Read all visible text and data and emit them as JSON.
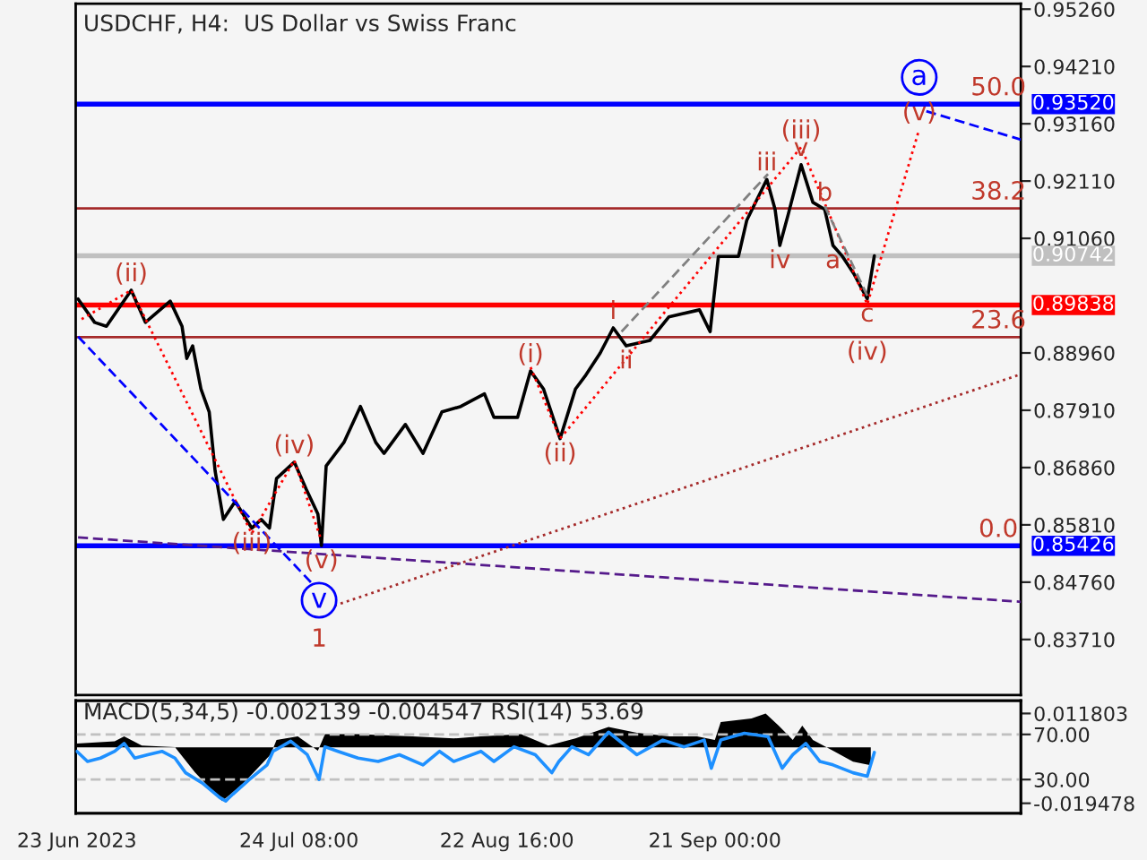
{
  "chart_data": [
    {
      "type": "line",
      "title": "USDCHF, H4:  US Dollar vs Swiss Franc",
      "xlim": [
        "2023-06-22T20:00",
        "2023-11-03T04:00"
      ],
      "tick_labels": "y",
      "ylim": [
        0.8269,
        0.9536
      ],
      "yticks": [
        {
          "value": 0.9526,
          "label": "0.95260"
        },
        {
          "value": 0.9421,
          "label": "0.94210"
        },
        {
          "value": 0.9316,
          "label": "0.93160"
        },
        {
          "value": 0.9211,
          "label": "0.92110"
        },
        {
          "value": 0.9106,
          "label": "0.91060"
        },
        {
          "value": 0.8896,
          "label": "0.88960"
        },
        {
          "value": 0.8791,
          "label": "0.87910"
        },
        {
          "value": 0.8686,
          "label": "0.86860"
        },
        {
          "value": 0.8581,
          "label": "0.85810"
        },
        {
          "value": 0.8476,
          "label": "0.84760"
        },
        {
          "value": 0.8371,
          "label": "0.83710"
        }
      ],
      "ref_lines": [
        {
          "axis": "y",
          "value": 0.9161,
          "color": "#a52a2a"
        },
        {
          "axis": "y",
          "value": 0.8925,
          "color": "#a52a2a"
        },
        {
          "axis": "y",
          "value": 0.9352,
          "label": "0.93520",
          "color": "#0000ff"
        },
        {
          "axis": "y",
          "value": 0.89838,
          "label": "0.89838",
          "color": "#ff0000"
        },
        {
          "axis": "y",
          "value": 0.90742,
          "label": "0.90742",
          "color": "#c0c0c0"
        },
        {
          "axis": "y",
          "value": 0.85426,
          "label": "0.85426",
          "color": "#0000ff"
        }
      ],
      "annotations": [
        {
          "text": "50.0",
          "x": "2023-10-31T00:00",
          "y": 0.9352
        },
        {
          "text": "38.2",
          "x": "2023-10-31T00:00",
          "y": 0.9161
        },
        {
          "text": "23.6",
          "x": "2023-10-31T00:00",
          "y": 0.8925
        },
        {
          "text": "0.0",
          "x": "2023-10-31T00:00",
          "y": 0.85426
        },
        {
          "text": "(ii)",
          "x": "2023-06-30T16:00",
          "y": 0.9011
        },
        {
          "text": "(iii)",
          "x": "2023-07-17T16:00",
          "y": 0.8575
        },
        {
          "text": "(iv)",
          "x": "2023-07-23T16:00",
          "y": 0.8696
        },
        {
          "text": "(v)",
          "x": "2023-07-27T12:00",
          "y": 0.8543
        },
        {
          "text": "(i)",
          "x": "2023-08-26T00:00",
          "y": 0.8863
        },
        {
          "text": "(ii)",
          "x": "2023-08-30T04:00",
          "y": 0.8739
        },
        {
          "text": "(iii)",
          "x": "2023-10-03T04:00",
          "y": 0.9273
        },
        {
          "text": "(iv)",
          "x": "2023-10-12T12:00",
          "y": 0.8925
        },
        {
          "text": "(v)",
          "x": "2023-10-19T20:00",
          "y": 0.9306
        },
        {
          "text": "i",
          "x": "2023-09-06T16:00",
          "y": 0.8942
        },
        {
          "text": "ii",
          "x": "2023-09-08T12:00",
          "y": 0.8909
        },
        {
          "text": "iii",
          "x": "2023-09-28T08:00",
          "y": 0.9214
        },
        {
          "text": "v",
          "x": "2023-10-03T04:00",
          "y": 0.9241
        },
        {
          "text": "iv",
          "x": "2023-09-30T04:00",
          "y": 0.9093
        },
        {
          "text": "a",
          "x": "2023-10-07T16:00",
          "y": 0.9093
        },
        {
          "text": "b",
          "x": "2023-10-06T12:00",
          "y": 0.9159
        },
        {
          "text": "c",
          "x": "2023-10-12T12:00",
          "y": 0.8995
        },
        {
          "text": "1",
          "x": "2023-07-27T04:00",
          "y": 0.8443
        }
      ],
      "series": [
        {
          "color": "#000000",
          "line_style": "solid",
          "x": [
            "2023-06-23T04:00",
            "2023-06-25T12:00",
            "2023-06-27T04:00",
            "2023-06-30T16:00",
            "2023-07-02T16:00",
            "2023-07-06T04:00",
            "2023-07-07T20:00",
            "2023-07-08T12:00",
            "2023-07-09T08:00",
            "2023-07-10T12:00",
            "2023-07-11T16:00",
            "2023-07-12T12:00",
            "2023-07-13T16:00",
            "2023-07-15T08:00",
            "2023-07-17T16:00",
            "2023-07-19T00:00",
            "2023-07-20T04:00",
            "2023-07-21T04:00",
            "2023-07-23T16:00",
            "2023-07-25T08:00",
            "2023-07-27T00:00",
            "2023-07-27T12:00",
            "2023-07-28T04:00",
            "2023-07-30T16:00",
            "2023-08-02T00:00",
            "2023-08-04T04:00",
            "2023-08-05T08:00",
            "2023-08-08T08:00",
            "2023-08-10T20:00",
            "2023-08-13T12:00",
            "2023-08-16T04:00",
            "2023-08-19T12:00",
            "2023-08-20T20:00",
            "2023-08-24T04:00",
            "2023-08-26T00:00",
            "2023-08-27T20:00",
            "2023-08-30T04:00",
            "2023-09-01T08:00",
            "2023-09-02T16:00",
            "2023-09-04T20:00",
            "2023-09-06T16:00",
            "2023-09-08T12:00",
            "2023-09-11T20:00",
            "2023-09-14T12:00",
            "2023-09-18T20:00",
            "2023-09-20T08:00",
            "2023-09-21T12:00",
            "2023-09-24T08:00",
            "2023-09-25T12:00",
            "2023-09-28T08:00",
            "2023-09-29T12:00",
            "2023-09-30T04:00",
            "2023-10-01T08:00",
            "2023-10-03T04:00",
            "2023-10-04T20:00",
            "2023-10-06T12:00",
            "2023-10-07T16:00",
            "2023-10-09T00:00",
            "2023-10-10T16:00",
            "2023-10-12T12:00",
            "2023-10-13T12:00"
          ],
          "values": [
            0.8995,
            0.8952,
            0.8945,
            0.9011,
            0.8952,
            0.8991,
            0.8945,
            0.8886,
            0.8909,
            0.883,
            0.8788,
            0.868,
            0.8591,
            0.8624,
            0.8575,
            0.8591,
            0.8575,
            0.8666,
            0.8696,
            0.8647,
            0.8601,
            0.8543,
            0.8689,
            0.8732,
            0.8798,
            0.8732,
            0.8712,
            0.8765,
            0.8712,
            0.8788,
            0.8798,
            0.8821,
            0.8778,
            0.8778,
            0.8863,
            0.883,
            0.8739,
            0.883,
            0.8853,
            0.8896,
            0.8942,
            0.8909,
            0.8919,
            0.8962,
            0.8975,
            0.8935,
            0.9073,
            0.9073,
            0.9139,
            0.9214,
            0.9159,
            0.9093,
            0.9149,
            0.9241,
            0.9172,
            0.9159,
            0.9093,
            0.9073,
            0.904,
            0.8995,
            0.9074
          ]
        },
        {
          "color": "#ff0000",
          "line_style": "dotted",
          "x": [
            "2023-06-23T16:00",
            "2023-06-30T16:00",
            "2023-07-17T16:00",
            "2023-07-23T16:00",
            "2023-07-27T12:00"
          ],
          "values": [
            0.8958,
            0.9011,
            0.8565,
            0.8699,
            0.8552
          ]
        },
        {
          "color": "#ff0000",
          "line_style": "dotted",
          "x": [
            "2023-08-26T00:00",
            "2023-08-30T04:00",
            "2023-10-03T04:00",
            "2023-10-12T12:00",
            "2023-10-19T20:00"
          ],
          "values": [
            0.887,
            0.8739,
            0.9273,
            0.8985,
            0.9306
          ]
        },
        {
          "color": "#0000ff",
          "line_style": "dashed",
          "x": [
            "2023-06-23T04:00",
            "2023-07-27T04:00"
          ],
          "values": [
            0.8926,
            0.846
          ]
        },
        {
          "color": "#0000ff",
          "line_style": "dashed",
          "x": [
            "2023-10-20T20:00",
            "2023-11-03T04:00"
          ],
          "values": [
            0.9339,
            0.9287
          ]
        },
        {
          "color": "#551a8b",
          "line_style": "dashed",
          "x": [
            "2023-06-23T04:00",
            "2023-11-03T04:00"
          ],
          "values": [
            0.8558,
            0.844
          ]
        },
        {
          "color": "#a52a2a",
          "line_style": "dotted",
          "x": [
            "2023-07-29T08:00",
            "2023-11-03T04:00"
          ],
          "values": [
            0.8433,
            0.8857
          ]
        },
        {
          "color": "#808080",
          "line_style": "dashed",
          "x": [
            "2023-09-07T20:00",
            "2023-09-28T12:00"
          ],
          "values": [
            0.8935,
            0.9224
          ]
        },
        {
          "color": "#808080",
          "line_style": "dashed",
          "x": [
            "2023-10-06T12:00",
            "2023-10-12T12:00"
          ],
          "values": [
            0.9165,
            0.9001
          ]
        },
        {
          "type": "scatter",
          "marker": "circle",
          "color": "#0000ff",
          "x": [
            "2023-07-27T04:00",
            "2023-10-19T20:00"
          ],
          "values": [
            0.8443,
            0.9401
          ],
          "value_labels": [
            "v",
            "a"
          ]
        }
      ]
    },
    {
      "type": "line",
      "title": "MACD(5,34,5) -0.002139 -0.004547 RSI(14) 53.69",
      "xlim": [
        "2023-06-22T20:00",
        "2023-11-03T04:00"
      ],
      "xticks": [
        {
          "value": "2023-06-23T00:00",
          "label": "23 Jun 2023"
        },
        {
          "value": "2023-07-24T08:00",
          "label": "24 Jul 08:00"
        },
        {
          "value": "2023-08-22T16:00",
          "label": "22 Aug 16:00"
        },
        {
          "value": "2023-09-21T00:00",
          "label": "21 Sep 00:00"
        }
      ],
      "ylim": [
        -0.023,
        0.0163
      ],
      "yticks": [
        0.011803,
        -0.019478
      ],
      "y2lim": [
        0,
        100
      ],
      "y2ticks": [
        {
          "value": 70,
          "label": "70.00"
        },
        {
          "value": 30,
          "label": "30.00"
        }
      ],
      "ref_lines": [
        {
          "axis": "y2",
          "value": 70,
          "color": "#c0c0c0",
          "line_style": "dashed"
        },
        {
          "axis": "y2",
          "value": 30,
          "color": "#c0c0c0",
          "line_style": "dashed"
        }
      ],
      "series": [
        {
          "type": "area",
          "color": "#000000",
          "x": [
            "2023-06-23T00:00",
            "2023-06-28T08:00",
            "2023-06-29T16:00",
            "2023-07-02T04:00",
            "2023-07-06T20:00",
            "2023-07-09T16:00",
            "2023-07-13T12:00",
            "2023-07-16T12:00",
            "2023-07-20T08:00",
            "2023-07-21T04:00",
            "2023-07-24T04:00",
            "2023-07-27T00:00",
            "2023-07-28T00:00",
            "2023-08-01T16:00",
            "2023-08-09T08:00",
            "2023-08-15T04:00",
            "2023-08-19T00:00",
            "2023-08-24T16:00",
            "2023-08-28T12:00",
            "2023-09-01T08:00",
            "2023-09-06T00:00",
            "2023-09-10T00:00",
            "2023-09-14T16:00",
            "2023-09-18T12:00",
            "2023-09-21T00:00",
            "2023-09-21T20:00",
            "2023-09-26T04:00",
            "2023-09-28T04:00",
            "2023-09-30T00:00",
            "2023-10-02T00:00",
            "2023-10-03T08:00",
            "2023-10-04T20:00",
            "2023-10-07T16:00",
            "2023-10-10T12:00",
            "2023-10-13T00:00"
          ],
          "values": [
            0.0013,
            0.0021,
            0.0038,
            0.0006,
            0.0001,
            -0.0087,
            -0.0187,
            -0.0125,
            -0.0025,
            0.0026,
            0.0038,
            -0.0012,
            0.0046,
            0.0046,
            0.0038,
            0.0031,
            0.0038,
            0.0046,
            0.0006,
            0.0031,
            0.0071,
            0.0051,
            0.0038,
            0.0038,
            0.0026,
            0.0088,
            0.0101,
            0.0118,
            0.0076,
            0.0026,
            0.0076,
            0.0026,
            -0.0012,
            -0.005,
            -0.0062
          ]
        },
        {
          "axis": "y2",
          "color": "#1e90ff",
          "line_style": "solid",
          "x": [
            "2023-06-23T00:00",
            "2023-06-24T12:00",
            "2023-06-26T08:00",
            "2023-06-28T08:00",
            "2023-06-29T16:00",
            "2023-07-01T04:00",
            "2023-07-03T00:00",
            "2023-07-05T00:00",
            "2023-07-06T20:00",
            "2023-07-08T08:00",
            "2023-07-10T16:00",
            "2023-07-13T04:00",
            "2023-07-14T00:00",
            "2023-07-15T00:00",
            "2023-07-17T08:00",
            "2023-07-19T20:00",
            "2023-07-20T16:00",
            "2023-07-23T04:00",
            "2023-07-25T12:00",
            "2023-07-27T04:00",
            "2023-07-28T00:00",
            "2023-07-29T20:00",
            "2023-08-01T16:00",
            "2023-08-04T12:00",
            "2023-08-07T12:00",
            "2023-08-10T20:00",
            "2023-08-13T04:00",
            "2023-08-15T04:00",
            "2023-08-19T00:00",
            "2023-08-20T20:00",
            "2023-08-23T16:00",
            "2023-08-26T16:00",
            "2023-08-29T00:00",
            "2023-08-30T00:00",
            "2023-08-31T20:00",
            "2023-09-03T04:00",
            "2023-09-06T00:00",
            "2023-09-10T00:00",
            "2023-09-13T16:00",
            "2023-09-16T16:00",
            "2023-09-19T12:00",
            "2023-09-20T12:00",
            "2023-09-21T20:00",
            "2023-09-25T04:00",
            "2023-09-28T12:00",
            "2023-09-30T12:00",
            "2023-10-02T00:00",
            "2023-10-03T20:00",
            "2023-10-05T20:00",
            "2023-10-07T16:00",
            "2023-10-10T12:00",
            "2023-10-12T12:00",
            "2023-10-13T12:00"
          ],
          "values": [
            55,
            46,
            49,
            55,
            62,
            49,
            52,
            55,
            49,
            36,
            27,
            14,
            11,
            17,
            30,
            43,
            55,
            64,
            52,
            30,
            59,
            55,
            49,
            46,
            52,
            43,
            55,
            46,
            55,
            46,
            59,
            52,
            36,
            46,
            59,
            52,
            72,
            52,
            65,
            59,
            65,
            40,
            65,
            71,
            68,
            40,
            52,
            62,
            46,
            43,
            36,
            33,
            54
          ]
        }
      ]
    }
  ]
}
